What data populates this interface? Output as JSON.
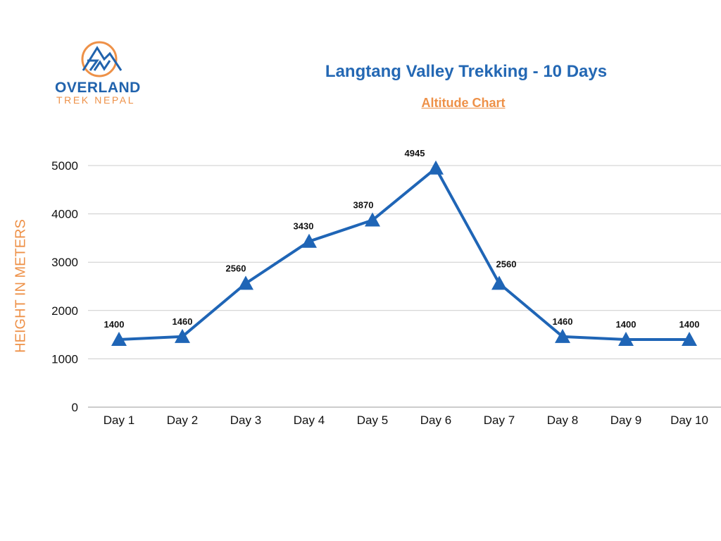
{
  "logo": {
    "line1": "OVERLAND",
    "line2": "TREK NEPAL"
  },
  "colors": {
    "line": "#1f65b6",
    "title": "#2468b4",
    "accent": "#ee9148",
    "grid": "#cccccc"
  },
  "chart_data": {
    "type": "line",
    "title": "Langtang Valley Trekking - 10 Days",
    "subtitle": "Altitude Chart",
    "xlabel": "",
    "ylabel": "HEIGHT IN METERS",
    "categories": [
      "Day 1",
      "Day 2",
      "Day 3",
      "Day 4",
      "Day 5",
      "Day 6",
      "Day 7",
      "Day 8",
      "Day 9",
      "Day 10"
    ],
    "values": [
      1400,
      1460,
      2560,
      3430,
      3870,
      4945,
      2560,
      1460,
      1400,
      1400
    ],
    "ylim": [
      0,
      5000
    ],
    "yticks": [
      0,
      1000,
      2000,
      3000,
      4000,
      5000
    ],
    "grid": true,
    "marker": "triangle",
    "data_labels": true
  }
}
